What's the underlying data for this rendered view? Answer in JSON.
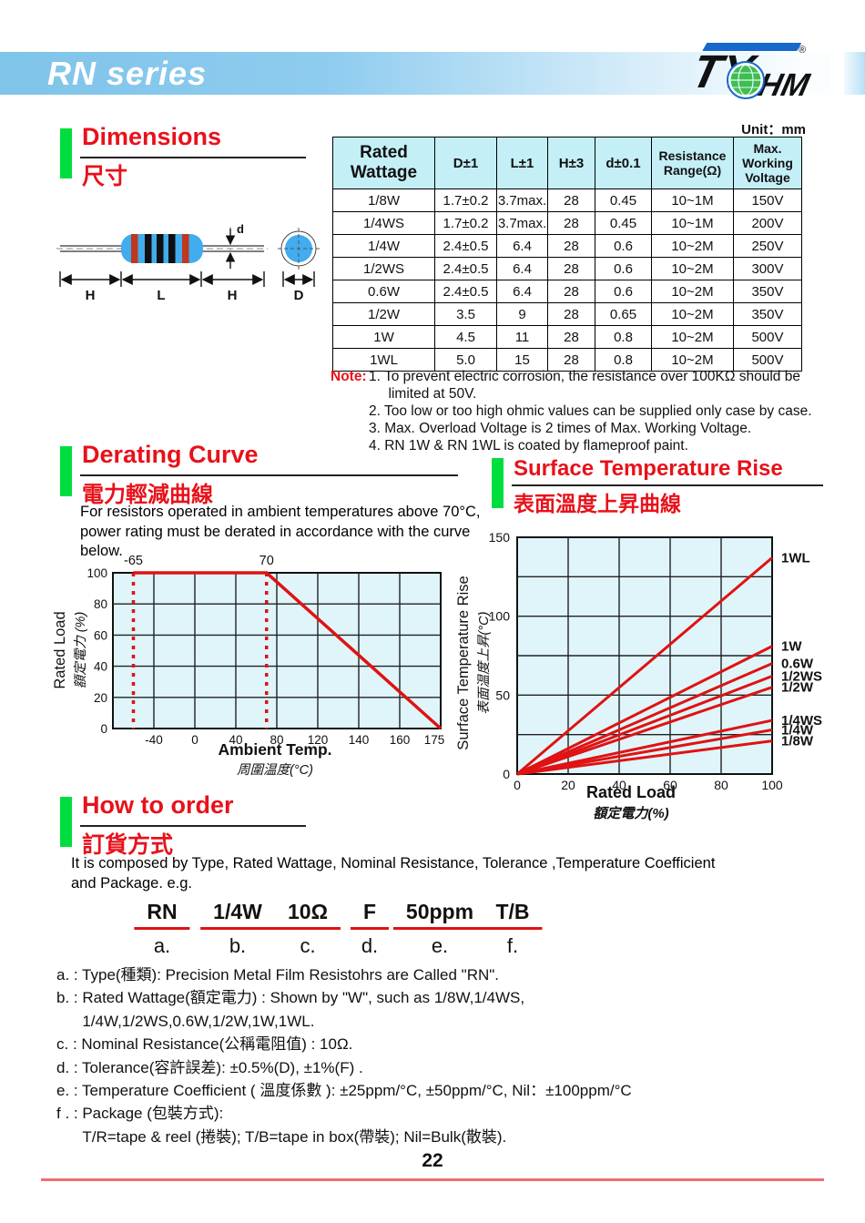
{
  "header": {
    "title": "RN series",
    "logo": {
      "left": "TY",
      "right": "HM",
      "reg": "®"
    }
  },
  "colors": {
    "accent_red": "#e8111a",
    "band_blue": "#7fc4e9",
    "green_bar": "#00de3f",
    "table_header_bg": "#c4eff7",
    "chart_bg": "#dff5fa",
    "line_red": "#e01212",
    "logo_blue": "#1768cd",
    "footer_line": "#ee6f6f",
    "resistor_body_blue": "#41acee",
    "band_red": "#c0371f"
  },
  "sections": {
    "dimensions": {
      "title_en": "Dimensions",
      "title_zh": "尺寸",
      "unit": "Unit：mm"
    },
    "derating": {
      "title_en": "Derating Curve",
      "title_zh": "電力輕減曲線",
      "description": "For resistors operated in ambient temperatures above 70°C,\npower rating must be derated in accordance with the curve\nbelow."
    },
    "surface": {
      "title_en": "Surface Temperature Rise",
      "title_zh": "表面溫度上昇曲線"
    },
    "order": {
      "title_en": "How to order",
      "title_zh": "訂貨方式",
      "description": "It is composed by Type, Rated Wattage, Nominal Resistance, Tolerance ,Temperature Coefficient\nand Package. e.g."
    }
  },
  "dim_table": {
    "headers": [
      "Rated\nWattage",
      "D±1",
      "L±1",
      "H±3",
      "d±0.1",
      "Resistance\nRange(Ω)",
      "Max.\nWorking\nVoltage"
    ],
    "rows": [
      [
        "1/8W",
        "1.7±0.2",
        "3.7max.",
        "28",
        "0.45",
        "10~1M",
        "150V"
      ],
      [
        "1/4WS",
        "1.7±0.2",
        "3.7max.",
        "28",
        "0.45",
        "10~1M",
        "200V"
      ],
      [
        "1/4W",
        "2.4±0.5",
        "6.4",
        "28",
        "0.6",
        "10~2M",
        "250V"
      ],
      [
        "1/2WS",
        "2.4±0.5",
        "6.4",
        "28",
        "0.6",
        "10~2M",
        "300V"
      ],
      [
        "0.6W",
        "2.4±0.5",
        "6.4",
        "28",
        "0.6",
        "10~2M",
        "350V"
      ],
      [
        "1/2W",
        "3.5",
        "9",
        "28",
        "0.65",
        "10~2M",
        "350V"
      ],
      [
        "1W",
        "4.5",
        "11",
        "28",
        "0.8",
        "10~2M",
        "500V"
      ],
      [
        "1WL",
        "5.0",
        "15",
        "28",
        "0.8",
        "10~2M",
        "500V"
      ]
    ]
  },
  "diagram": {
    "h_left": "H",
    "l": "L",
    "h_right": "H",
    "d_small": "d",
    "d_big": "D"
  },
  "notes": {
    "label": "Note:",
    "items": [
      "1. To prevent electric corrosion, the resistance over 100KΩ should be\n     limited at 50V.",
      "2. Too low or too high ohmic values can be supplied only case by case.",
      "3. Max. Overload Voltage is 2 times of Max. Working Voltage.",
      "4. RN 1W & RN 1WL is coated by flameproof paint."
    ]
  },
  "order_example": {
    "parts": [
      {
        "value": "RN",
        "key": "a."
      },
      {
        "value": "1/4W",
        "key": "b."
      },
      {
        "value": "10Ω",
        "key": "c."
      },
      {
        "value": "F",
        "key": "d."
      },
      {
        "value": "50ppm",
        "key": "e."
      },
      {
        "value": "T/B",
        "key": "f."
      }
    ]
  },
  "order_details": [
    "a. : Type(種類): Precision Metal Film Resistohrs are Called \"RN\".",
    "b. : Rated Wattage(額定電力) : Shown by \"W\", such as 1/8W,1/4WS,",
    "      1/4W,1/2WS,0.6W,1/2W,1W,1WL.",
    "c. : Nominal Resistance(公稱電阻值) : 10Ω.",
    "d. : Tolerance(容許誤差): ±0.5%(D), ±1%(F) .",
    "e. : Temperature Coefficient ( 溫度係數 ): ±25ppm/°C, ±50ppm/°C, Nil：±100ppm/°C",
    "f . : Package (包裝方式):",
    "      T/R=tape & reel (捲裝); T/B=tape in box(帶裝); Nil=Bulk(散裝)."
  ],
  "footer": {
    "page": "22"
  },
  "chart_data": [
    {
      "type": "line",
      "title": "Derating Curve",
      "xlabel": "Ambient Temp.",
      "xlabel_zh": "周圍温度(°C)",
      "ylabel": "Rated Load",
      "ylabel_zh": "額定電力 (%)",
      "x_tick_labels": [
        "-40",
        "0",
        "40",
        "80",
        "120",
        "140",
        "160",
        "175"
      ],
      "y_ticks": [
        0,
        20,
        40,
        60,
        80,
        100
      ],
      "ylim": [
        0,
        100
      ],
      "grid": true,
      "legend_position": "none",
      "reference_lines_x": [
        -65,
        70
      ],
      "reference_labels": [
        "-65",
        "70"
      ],
      "series": [
        {
          "name": "derating-curve",
          "points": [
            [
              -65,
              100
            ],
            [
              70,
              100
            ],
            [
              175,
              0
            ]
          ]
        }
      ],
      "line_color": "#e01212"
    },
    {
      "type": "line",
      "title": "Surface Temperature Rise",
      "xlabel": "Rated Load",
      "xlabel_zh": "額定電力(%)",
      "ylabel": "Surface Temperature Rise",
      "ylabel_zh": "表面温度上昇(°C)",
      "x_ticks": [
        0,
        20,
        40,
        60,
        80,
        100
      ],
      "y_ticks": [
        0,
        50,
        100,
        150
      ],
      "xlim": [
        0,
        100
      ],
      "ylim": [
        0,
        150
      ],
      "grid_y_step": 25,
      "grid": true,
      "legend_position": "right-of-lines",
      "series": [
        {
          "name": "1WL",
          "points": [
            [
              0,
              0
            ],
            [
              100,
              137
            ]
          ]
        },
        {
          "name": "1W",
          "points": [
            [
              0,
              0
            ],
            [
              100,
              81
            ]
          ]
        },
        {
          "name": "0.6W",
          "points": [
            [
              0,
              0
            ],
            [
              100,
              70
            ]
          ]
        },
        {
          "name": "1/2WS",
          "points": [
            [
              0,
              0
            ],
            [
              100,
              62
            ]
          ]
        },
        {
          "name": "1/2W",
          "points": [
            [
              0,
              0
            ],
            [
              100,
              55
            ]
          ]
        },
        {
          "name": "1/4WS",
          "points": [
            [
              0,
              0
            ],
            [
              100,
              34
            ]
          ]
        },
        {
          "name": "1/4W",
          "points": [
            [
              0,
              0
            ],
            [
              100,
              28
            ]
          ]
        },
        {
          "name": "1/8W",
          "points": [
            [
              0,
              0
            ],
            [
              100,
              21
            ]
          ]
        }
      ],
      "line_color": "#e01212"
    }
  ]
}
